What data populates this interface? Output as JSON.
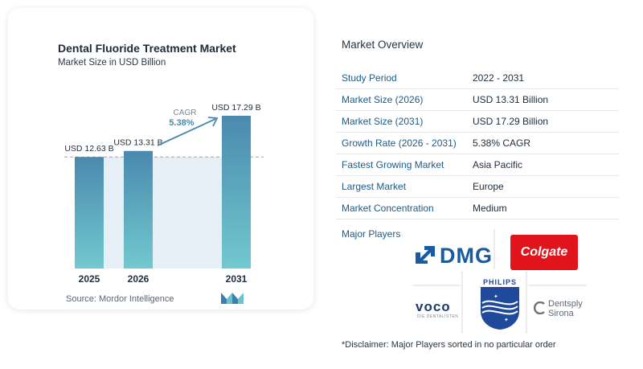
{
  "chart_data": {
    "type": "bar",
    "title": "Dental Fluoride Treatment Market",
    "subtitle": "Market Size in USD Billion",
    "categories": [
      "2025",
      "2026",
      "2031"
    ],
    "values": [
      12.63,
      13.31,
      17.29
    ],
    "data_labels": [
      "USD 12.63 B",
      "USD 13.31 B",
      "USD 17.29 B"
    ],
    "cagr_label": "CAGR",
    "cagr_value": "5.38%",
    "bar_color_top": "#4a89ae",
    "bar_color_bottom": "#72c9cf",
    "ylim": [
      0,
      17.29
    ]
  },
  "source": "Source:  Mordor Intelligence",
  "overview": {
    "title": "Market Overview",
    "rows": [
      {
        "label": "Study Period",
        "value": "2022 - 2031"
      },
      {
        "label": "Market Size (2026)",
        "value": "USD 13.31 Billion"
      },
      {
        "label": "Market Size (2031)",
        "value": "USD 17.29 Billion"
      },
      {
        "label": "Growth Rate (2026 - 2031)",
        "value": "5.38% CAGR"
      },
      {
        "label": "Fastest Growing Market",
        "value": "Asia Pacific"
      },
      {
        "label": "Largest Market",
        "value": "Europe"
      },
      {
        "label": "Market Concentration",
        "value": "Medium"
      }
    ]
  },
  "players": {
    "title": "Major Players",
    "dmg": "DMG",
    "colgate": "Colgate",
    "voco": "voco",
    "voco_tag": "DIE DENTALISTEN",
    "philips": "PHILIPS",
    "dentsply_1": "Dentsply",
    "dentsply_2": "Sirona"
  },
  "disclaimer": "*Disclaimer: Major Players sorted in no particular order",
  "colors": {
    "accent_blue": "#1e5b86",
    "colgate_red": "#e1141b",
    "dmg_blue": "#1a5aa0"
  }
}
